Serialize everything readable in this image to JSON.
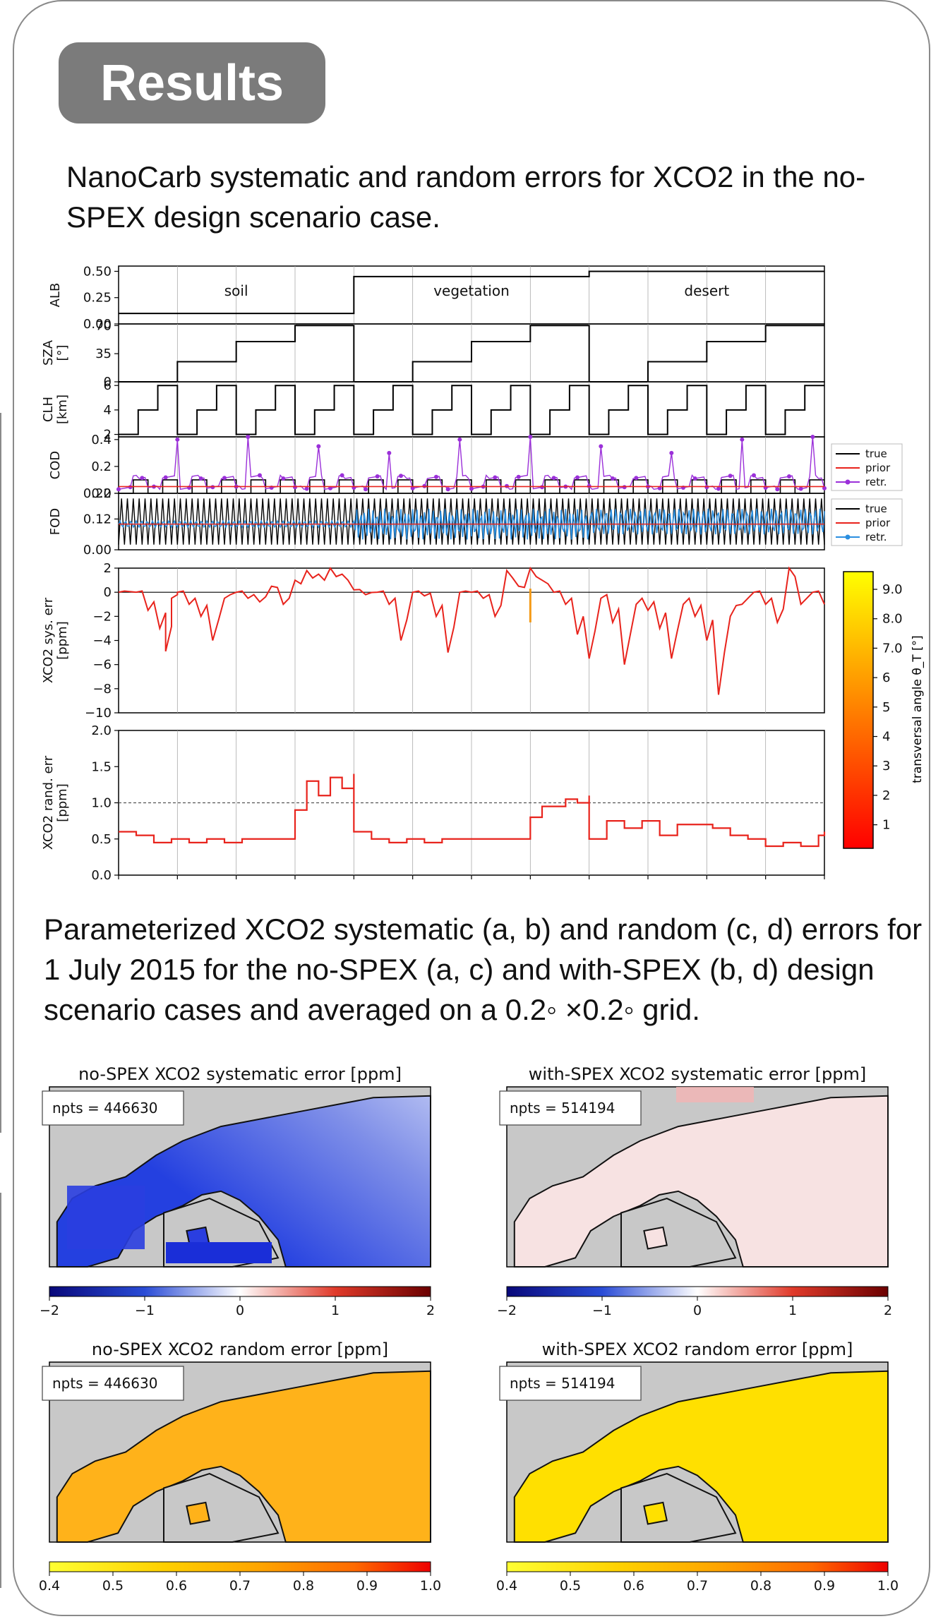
{
  "header": {
    "title": "Results"
  },
  "captions": {
    "top": "NanoCarb systematic and random errors for XCO2 in the no-SPEX design scenario case.",
    "middle": "Parameterized XCO2 systematic (a, b) and random (c, d) errors for 1 July 2015 for the no-SPEX (a, c) and with-SPEX (b, d) design scenario cases and averaged on a 0.2◦ ×0.2◦ grid."
  },
  "chart_data": [
    {
      "type": "line",
      "panel": "ALB",
      "ylabel": "ALB",
      "yticks": [
        "0.00",
        "0.25",
        "0.50"
      ],
      "ylim": [
        0,
        0.55
      ],
      "x": [
        0,
        40,
        40,
        80,
        80,
        120
      ],
      "values": [
        0.1,
        0.1,
        0.45,
        0.45,
        0.5,
        0.5
      ],
      "annotations": [
        "soil",
        "vegetation",
        "desert"
      ]
    },
    {
      "type": "line",
      "panel": "SZA",
      "ylabel": [
        "SZA",
        "[°]"
      ],
      "yticks": [
        "0",
        "35",
        "70"
      ],
      "ylim": [
        0,
        72
      ],
      "step_levels": [
        0,
        25,
        50,
        70
      ],
      "steps_per_surface": 4
    },
    {
      "type": "line",
      "panel": "CLH",
      "ylabel": [
        "CLH",
        "[km]"
      ],
      "yticks": [
        "2",
        "4",
        "6"
      ],
      "ylim": [
        1.8,
        6.3
      ],
      "step_levels": [
        2,
        4,
        6
      ]
    },
    {
      "type": "line",
      "panel": "COD",
      "ylabel": "COD",
      "yticks": [
        "0.0",
        "0.2",
        "0.4"
      ],
      "ylim": [
        0,
        0.42
      ],
      "legend": [
        "true",
        "prior",
        "retr."
      ],
      "prior_value": 0.05,
      "true_levels": [
        0,
        0.1
      ],
      "retrieved_peaks": [
        0.4,
        0.42,
        0.35,
        0.3
      ],
      "series_colors": {
        "true": "#000000",
        "prior": "#e8231c",
        "retr.": "#9b30d9"
      }
    },
    {
      "type": "line",
      "panel": "FOD",
      "ylabel": "FOD",
      "yticks": [
        "0.00",
        "0.12",
        "0.22"
      ],
      "ylim": [
        0,
        0.22
      ],
      "legend": [
        "true",
        "prior",
        "retr."
      ],
      "prior_value": 0.1,
      "true_oscillation": [
        0.02,
        0.2
      ],
      "series_colors": {
        "true": "#000000",
        "prior": "#e8231c",
        "retr.": "#2b8fe0"
      }
    },
    {
      "type": "line",
      "panel": "XCO2 sys. err",
      "ylabel": [
        "XCO2 sys. err",
        "[ppm]"
      ],
      "yticks": [
        "−10",
        "−8",
        "−6",
        "−4",
        "−2",
        "0",
        "2"
      ],
      "ylim": [
        -10,
        2
      ],
      "x": [
        0,
        3,
        5,
        7,
        8,
        9,
        10,
        12,
        14,
        16,
        18,
        20,
        22,
        24,
        26,
        28,
        30,
        32,
        34,
        36,
        38,
        40,
        42,
        44,
        46,
        48,
        50,
        52,
        54,
        56,
        58,
        60,
        62,
        64,
        66,
        68,
        70,
        72,
        74,
        76,
        78,
        80,
        82,
        84,
        86,
        88,
        90,
        92,
        94,
        96,
        98,
        100,
        102,
        104,
        106,
        108,
        110,
        112,
        114,
        116,
        118,
        120
      ],
      "values": [
        0,
        0,
        -1.5,
        -3,
        -4.9,
        -0.5,
        0,
        -1,
        -2,
        -4,
        -0.5,
        0,
        -0.5,
        -0.8,
        0.5,
        -1,
        1,
        1.8,
        1.5,
        2,
        1.5,
        0.2,
        -0.2,
        0,
        -1,
        -4,
        0,
        -0.3,
        -2,
        -5,
        0,
        0,
        -0.5,
        -2,
        1.8,
        0.5,
        2,
        1,
        0,
        -1,
        -3.5,
        -5.5,
        -0.5,
        -2.5,
        -6,
        -1,
        -1.5,
        -3,
        -5.5,
        -1,
        -2,
        -4,
        -8.5,
        -2,
        -1,
        0,
        -1,
        -2.5,
        2,
        -1,
        0,
        -1
      ]
    },
    {
      "type": "line",
      "panel": "XCO2 rand. err",
      "ylabel": [
        "XCO2 rand. err",
        "[ppm]"
      ],
      "yticks": [
        "0.0",
        "0.5",
        "1.0",
        "1.5",
        "2.0"
      ],
      "ylim": [
        0,
        2
      ],
      "reference_line": 1.0,
      "x": [
        0,
        3,
        6,
        9,
        12,
        15,
        18,
        21,
        24,
        27,
        30,
        32,
        34,
        36,
        38,
        40,
        40,
        43,
        46,
        49,
        52,
        55,
        58,
        61,
        64,
        67,
        70,
        72,
        74,
        76,
        78,
        80,
        80,
        83,
        86,
        89,
        92,
        95,
        98,
        101,
        104,
        107,
        110,
        113,
        116,
        119,
        120
      ],
      "values": [
        0.6,
        0.55,
        0.45,
        0.5,
        0.45,
        0.5,
        0.45,
        0.5,
        0.5,
        0.5,
        0.9,
        1.3,
        1.1,
        1.35,
        1.2,
        1.4,
        0.6,
        0.5,
        0.45,
        0.5,
        0.45,
        0.5,
        0.5,
        0.5,
        0.5,
        0.5,
        0.8,
        0.95,
        0.95,
        1.05,
        1.0,
        1.1,
        0.5,
        0.75,
        0.65,
        0.75,
        0.55,
        0.7,
        0.7,
        0.65,
        0.55,
        0.5,
        0.4,
        0.45,
        0.4,
        0.55,
        0.6
      ]
    },
    {
      "type": "heatmap",
      "panel": "colorbar",
      "label": "transversal angle θ_T [°]",
      "ticks": [
        "1",
        "2",
        "3",
        "4",
        "5",
        "6",
        "7.0",
        "8.0",
        "9.0"
      ],
      "colors": [
        "#ff0000",
        "#ff8000",
        "#ffff00"
      ]
    },
    {
      "type": "heatmap",
      "title": "no-SPEX XCO2 systematic error [ppm]",
      "npts": "npts = 446630",
      "colorbar_ticks": [
        "−2",
        "−1",
        "0",
        "1",
        "2"
      ],
      "colormap": [
        "#08087a",
        "#2a4cd6",
        "#ffffff",
        "#e03a2a",
        "#6b0000"
      ],
      "dominant_value": -0.6
    },
    {
      "type": "heatmap",
      "title": "with-SPEX XCO2 systematic error [ppm]",
      "npts": "npts = 514194",
      "colorbar_ticks": [
        "−2",
        "−1",
        "0",
        "1",
        "2"
      ],
      "colormap": [
        "#08087a",
        "#2a4cd6",
        "#ffffff",
        "#e03a2a",
        "#6b0000"
      ],
      "dominant_value": 0.1
    },
    {
      "type": "heatmap",
      "title": "no-SPEX XCO2 random error [ppm]",
      "npts": "npts = 446630",
      "colorbar_ticks": [
        "0.4",
        "0.5",
        "0.6",
        "0.7",
        "0.8",
        "0.9",
        "1.0"
      ],
      "colormap": [
        "#ffff33",
        "#ffd000",
        "#ffa500",
        "#ff6a00",
        "#ee0000"
      ],
      "dominant_value": 0.55
    },
    {
      "type": "heatmap",
      "title": "with-SPEX XCO2 random error [ppm]",
      "npts": "npts = 514194",
      "colorbar_ticks": [
        "0.4",
        "0.5",
        "0.6",
        "0.7",
        "0.8",
        "0.9",
        "1.0"
      ],
      "colormap": [
        "#ffff33",
        "#ffd000",
        "#ffa500",
        "#ff6a00",
        "#ee0000"
      ],
      "dominant_value": 0.45
    }
  ],
  "colors": {
    "frame": "#8a8a8a",
    "banner": "#7b7b7b",
    "land_gray": "#c8c8c8",
    "red_line": "#e8231c"
  }
}
